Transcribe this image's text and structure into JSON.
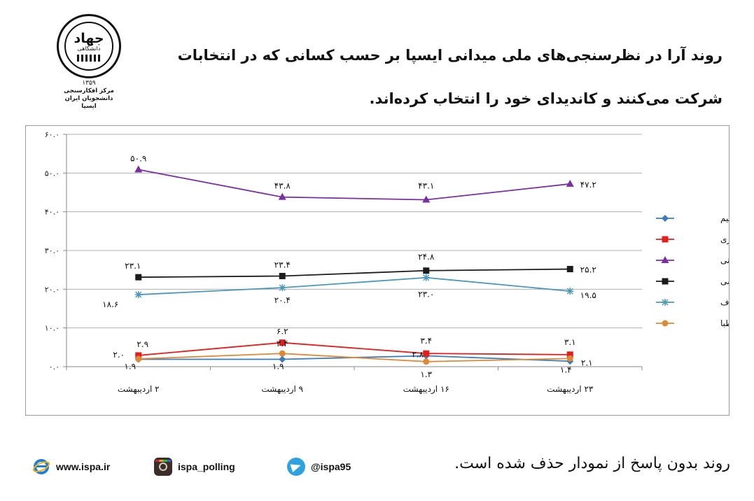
{
  "header": {
    "title": "روند آرا در نظرسنجی‌های ملی میدانی ایسپا بر حسب کسانی که در انتخابات شرکت می‌کنند و کاندیدای خود را انتخاب کرده‌اند."
  },
  "logo": {
    "main": "جهاد",
    "sub": "دانشگاهی",
    "year": "۱۳۵۹",
    "org": "مرکز افکارسنجی دانشجویان ایران",
    "short": "ایسپا"
  },
  "footer": {
    "note": "روند بدون پاسخ از نمودار حذف شده است.",
    "website": "www.ispa.ir",
    "instagram": "ispa_polling",
    "telegram": "@ispa95"
  },
  "colors": {
    "aghamirsalim": "#3e7cb8",
    "jahangiri": "#e11f1f",
    "rouhani": "#7a2fa0",
    "raisi": "#1c1c1c",
    "ghalibaf": "#4b98b8",
    "hashemitaba": "#dc8a3a",
    "grid": "#b0b0b0",
    "axis": "#888888"
  },
  "chart_data": {
    "type": "line",
    "categories": [
      "۲ اردیبهشت",
      "۹ اردیبهشت",
      "۱۶ اردیبهشت",
      "۲۳ اردیبهشت"
    ],
    "ylim": [
      0,
      60
    ],
    "yticks": [
      0,
      10,
      20,
      30,
      40,
      50,
      60
    ],
    "ytick_labels": [
      "۰.۰",
      "۱۰.۰",
      "۲۰.۰",
      "۳۰.۰",
      "۴۰.۰",
      "۵۰.۰",
      "۶۰.۰"
    ],
    "grid": true,
    "legend_position": "right",
    "series": [
      {
        "name": "آقا میرسلیم",
        "key": "aghamirsalim",
        "marker": "diamond",
        "values": [
          1.9,
          1.9,
          2.8,
          1.4
        ],
        "labels": [
          "",
          "",
          "",
          ""
        ]
      },
      {
        "name": "جهانگیری",
        "key": "jahangiri",
        "marker": "square",
        "values": [
          2.9,
          6.2,
          3.4,
          3.1
        ],
        "labels": [
          "۲.۹",
          "۶.۲",
          "۳.۴",
          "۳.۱"
        ]
      },
      {
        "name": "روحانی",
        "key": "rouhani",
        "marker": "triangle",
        "values": [
          50.9,
          43.8,
          43.1,
          47.2
        ],
        "labels": [
          "۵۰.۹",
          "۴۳.۸",
          "۴۳.۱",
          "۴۷.۲"
        ]
      },
      {
        "name": "رئیسی",
        "key": "raisi",
        "marker": "square",
        "values": [
          23.1,
          23.4,
          24.8,
          25.2
        ],
        "labels": [
          "۲۳.۱",
          "۲۳.۴",
          "۲۴.۸",
          "۲۵.۲"
        ]
      },
      {
        "name": "قالیباف",
        "key": "ghalibaf",
        "marker": "star",
        "values": [
          18.6,
          20.4,
          23.0,
          19.5
        ],
        "labels": [
          "۱۸.۶",
          "۲۰.۴",
          "۲۳.۰",
          "۱۹.۵"
        ]
      },
      {
        "name": "هاشمی طبا",
        "key": "hashemitaba",
        "marker": "circle",
        "values": [
          2.0,
          3.4,
          1.3,
          2.1
        ],
        "labels": [
          "۲.۰",
          "۳.۴",
          "۱.۳",
          "۲.۱"
        ]
      }
    ],
    "extra_labels": [
      {
        "series": "aghamirsalim",
        "index": 0,
        "text": "۱.۹"
      },
      {
        "series": "aghamirsalim",
        "index": 1,
        "text": "۱.۹"
      },
      {
        "series": "aghamirsalim",
        "index": 2,
        "text": "۲.۸"
      },
      {
        "series": "aghamirsalim",
        "index": 3,
        "text": "۱.۴"
      }
    ]
  }
}
